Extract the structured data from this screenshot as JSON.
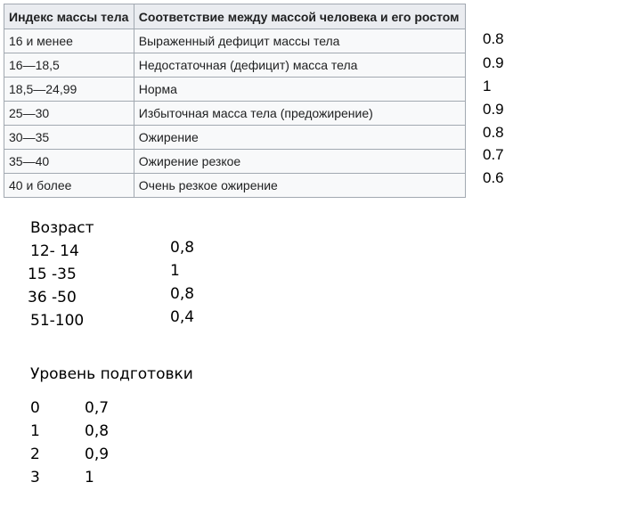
{
  "bmi_table": {
    "headers": [
      "Индекс массы тела",
      "Соответствие между массой человека и его ростом"
    ],
    "rows": [
      [
        "16 и менее",
        "Выраженный дефицит массы тела"
      ],
      [
        "16—18,5",
        "Недостаточная (дефицит) масса тела"
      ],
      [
        "18,5—24,99",
        "Норма"
      ],
      [
        "25—30",
        "Избыточная масса тела (предожирение)"
      ],
      [
        "30—35",
        "Ожирение"
      ],
      [
        "35—40",
        "Ожирение резкое"
      ],
      [
        "40 и более",
        "Очень резкое ожирение"
      ]
    ]
  },
  "bmi_coefficients": [
    "0.8",
    "0.9",
    "1",
    "0.9",
    "0.8",
    "0.7",
    "0.6"
  ],
  "age": {
    "title": "Возраст",
    "rows": [
      {
        "range": "12- 14",
        "value": "0,8"
      },
      {
        "range": "15 -35",
        "value": "1"
      },
      {
        "range": "36 -50",
        "value": "0,8"
      },
      {
        "range": "51-100",
        "value": "0,4"
      }
    ]
  },
  "training": {
    "title": "Уровень подготовки",
    "rows": [
      {
        "level": "0",
        "value": "0,7"
      },
      {
        "level": "1",
        "value": "0,8"
      },
      {
        "level": "2",
        "value": "0,9"
      },
      {
        "level": "3",
        "value": "1"
      }
    ]
  }
}
